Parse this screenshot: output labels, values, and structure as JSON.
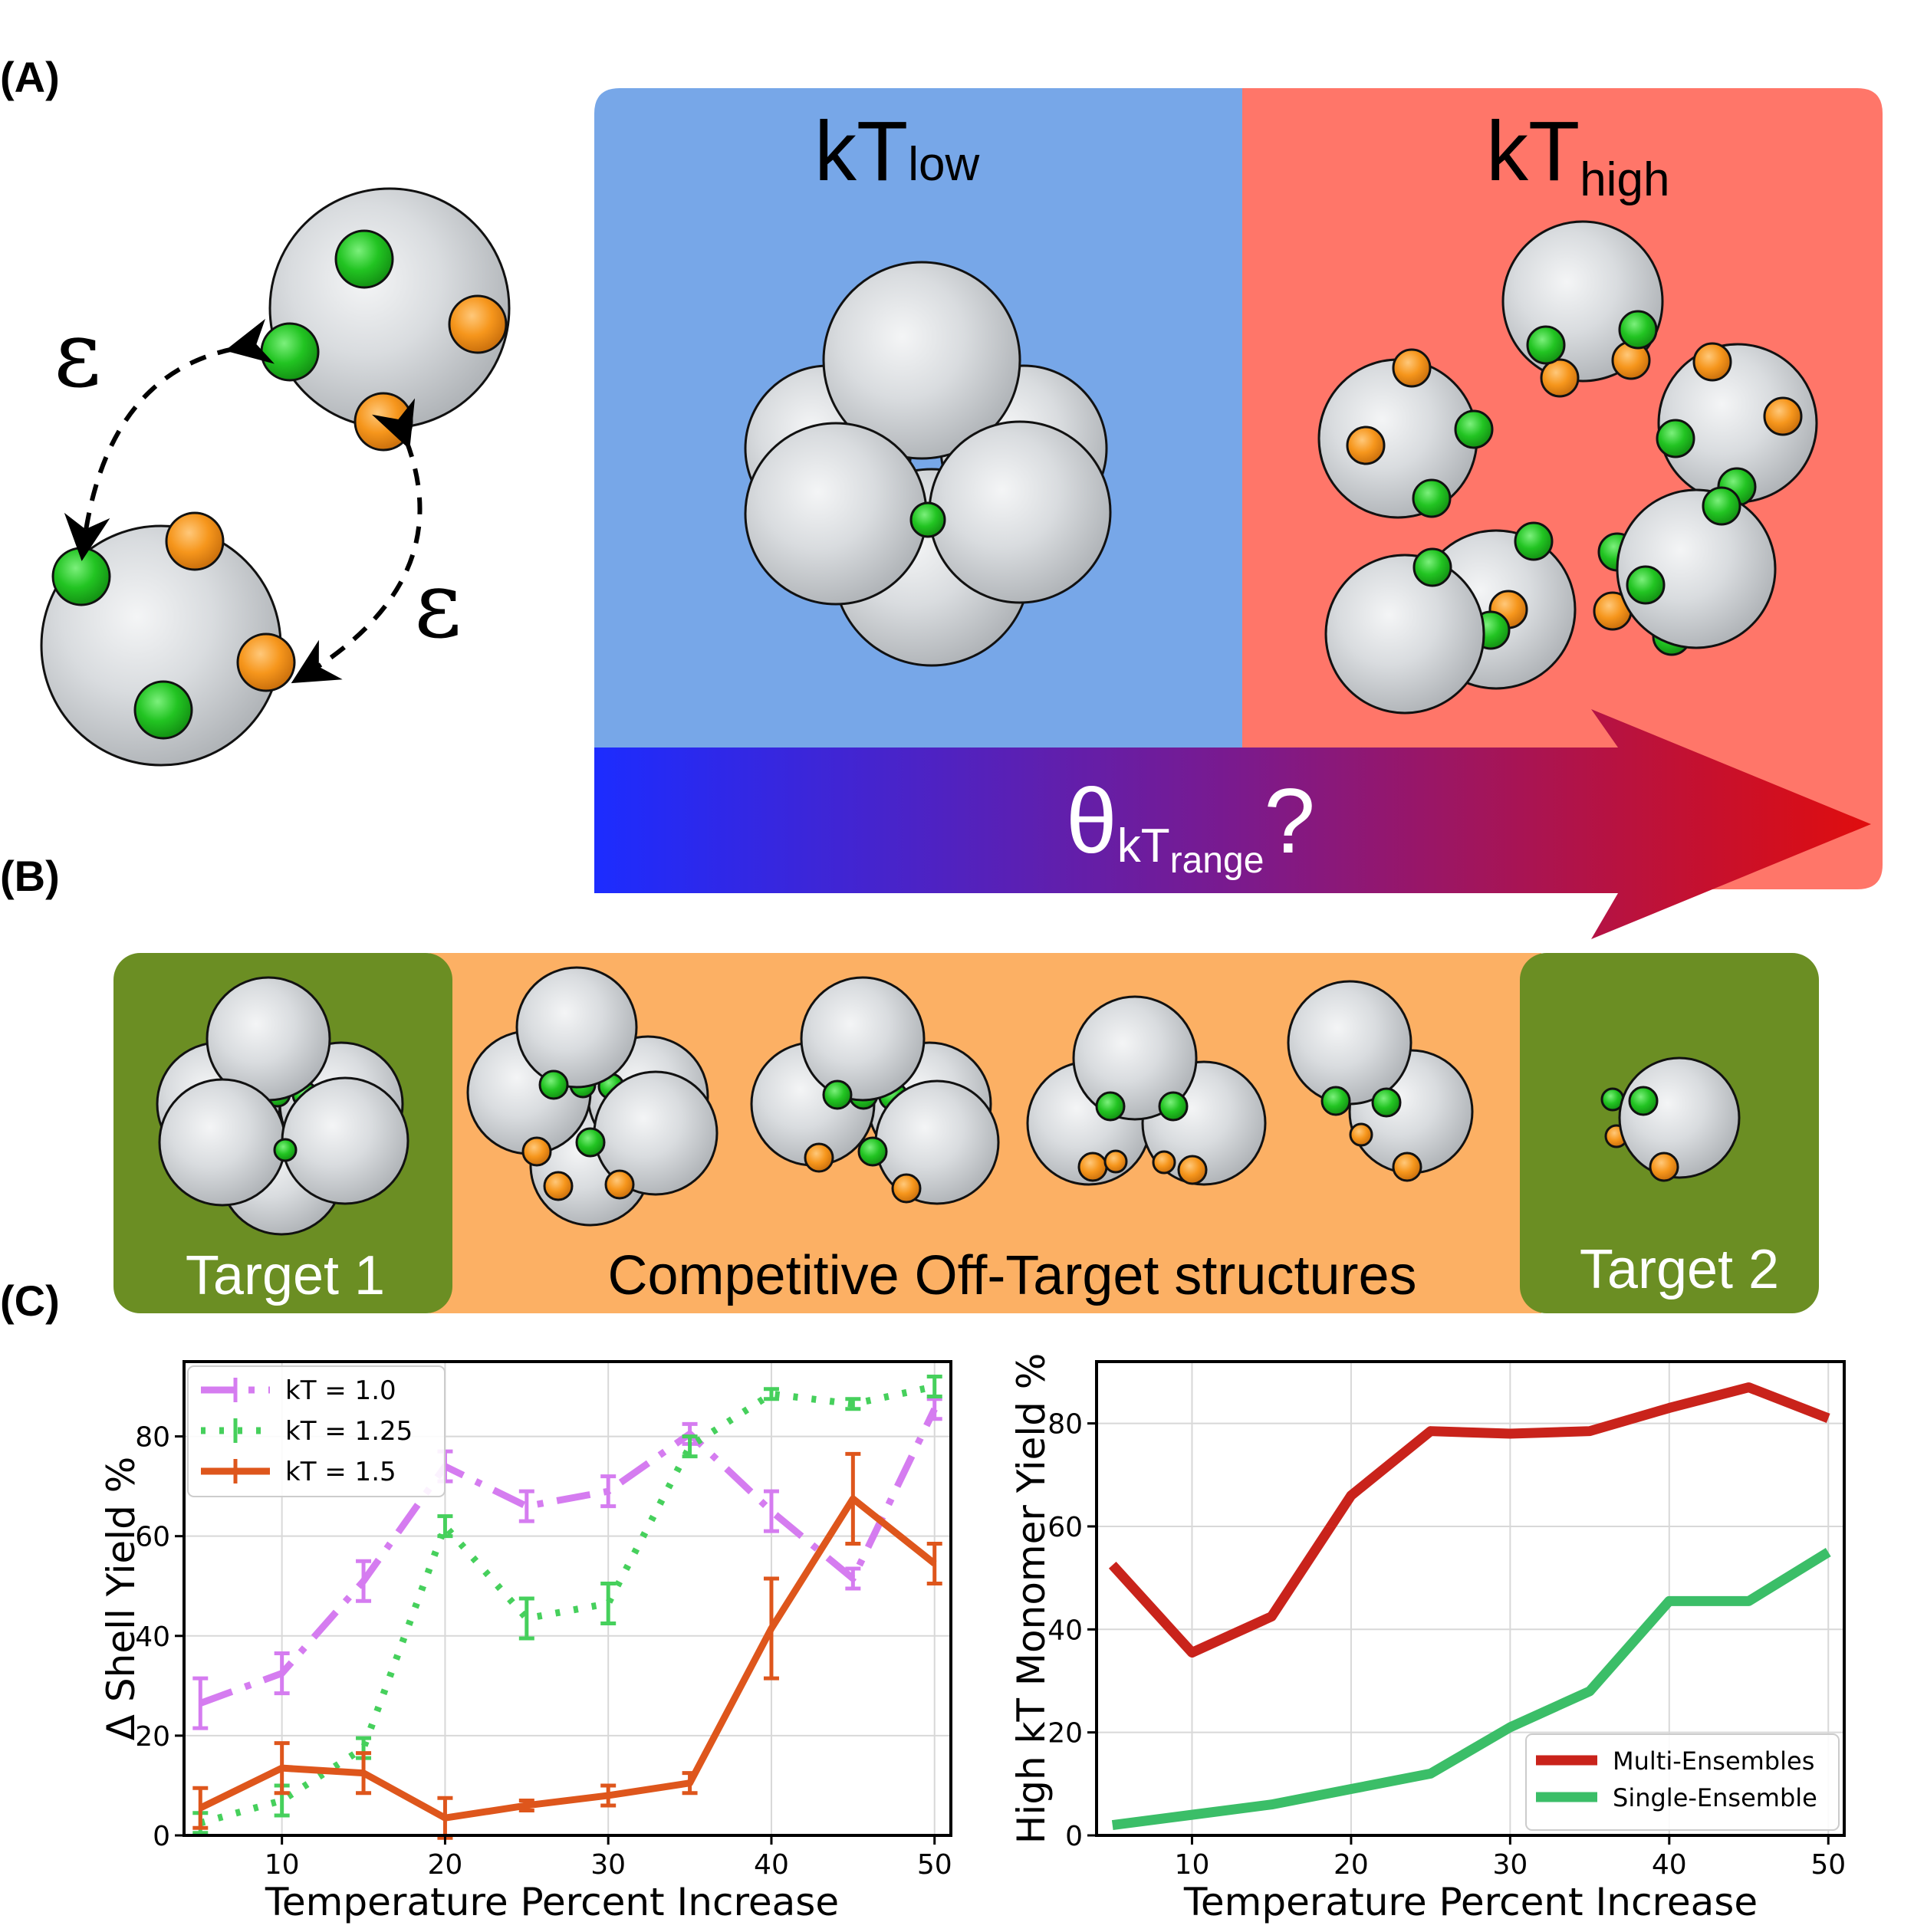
{
  "panels": {
    "a": "(A)",
    "b": "(B)",
    "c": "(C)"
  },
  "panelA": {
    "epsilon_symbol": "ε",
    "kT": "kT",
    "low": "low",
    "high": "high",
    "theta": "θ",
    "range": "range",
    "question": "?",
    "colors": {
      "low_bg": "#77a7e8",
      "high_bg": "#ff7669",
      "patch_green": "#22c422",
      "patch_orange": "#f6961c"
    }
  },
  "panelB": {
    "target1": "Target 1",
    "offtarget": "Competitive Off-Target structures",
    "target2": "Target 2",
    "colors": {
      "target_bg": "#6b8e23",
      "offtarget_bg": "#fcb064"
    }
  },
  "chart_data": [
    {
      "type": "line",
      "xlabel": "Temperature Percent Increase",
      "ylabel": "Δ Shell Yield %",
      "xlim": [
        4,
        51
      ],
      "ylim": [
        0,
        95
      ],
      "xticks": [
        10,
        20,
        30,
        40,
        50
      ],
      "yticks": [
        0,
        20,
        40,
        60,
        80
      ],
      "grid": true,
      "legend": "top-left",
      "x": [
        5,
        10,
        15,
        20,
        25,
        30,
        35,
        40,
        45,
        50
      ],
      "series": [
        {
          "name": "kT = 1.0",
          "color": "#d57cf0",
          "dash": "dashdot",
          "values": [
            26.5,
            32.5,
            51,
            74,
            66,
            69,
            80.5,
            65,
            51.5,
            85.5
          ],
          "err": [
            5,
            4,
            4,
            3,
            3,
            3,
            2,
            4,
            2,
            2
          ]
        },
        {
          "name": "kT = 1.25",
          "color": "#46d05c",
          "dash": "dotted",
          "values": [
            2.5,
            7,
            17.5,
            62,
            43.5,
            46.5,
            78,
            88.5,
            86.5,
            90
          ],
          "err": [
            2,
            3,
            2,
            2,
            4,
            4,
            2,
            1,
            1,
            2
          ]
        },
        {
          "name": "kT = 1.5",
          "color": "#de561c",
          "dash": "solid",
          "values": [
            5.5,
            13.5,
            12.5,
            3.5,
            6,
            8,
            10.5,
            41.5,
            67.5,
            54.5
          ],
          "err": [
            4,
            5,
            4,
            4,
            1,
            2,
            2,
            10,
            9,
            4
          ]
        }
      ]
    },
    {
      "type": "line",
      "xlabel": "Temperature Percent Increase",
      "ylabel": "High kT Monomer Yield %",
      "xlim": [
        4,
        51
      ],
      "ylim": [
        0,
        92
      ],
      "xticks": [
        10,
        20,
        30,
        40,
        50
      ],
      "yticks": [
        0,
        20,
        40,
        60,
        80
      ],
      "grid": true,
      "legend": "bottom-right",
      "x": [
        5,
        10,
        15,
        20,
        25,
        30,
        35,
        40,
        45,
        50
      ],
      "series": [
        {
          "name": "Multi-Ensembles",
          "color": "#c9231b",
          "values": [
            52.5,
            35.5,
            42.5,
            66,
            78.5,
            78,
            78.5,
            83,
            87,
            81
          ]
        },
        {
          "name": "Single-Ensemble",
          "color": "#3bbe68",
          "values": [
            2,
            4,
            6,
            9,
            12,
            21,
            28,
            45.5,
            45.5,
            55
          ]
        }
      ]
    }
  ]
}
